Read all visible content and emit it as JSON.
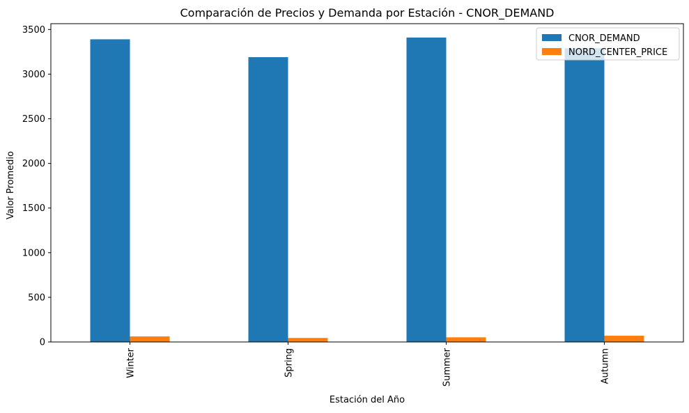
{
  "chart_data": {
    "type": "bar",
    "title": "Comparación de Precios y Demanda por Estación - CNOR_DEMAND",
    "xlabel": "Estación del Año",
    "ylabel": "Valor Promedio",
    "categories": [
      "Winter",
      "Spring",
      "Summer",
      "Autumn"
    ],
    "series": [
      {
        "name": "CNOR_DEMAND",
        "color": "#1f77b4",
        "values": [
          3390,
          3190,
          3410,
          3290
        ]
      },
      {
        "name": "NORD_CENTER_PRICE",
        "color": "#ff7f0e",
        "values": [
          62,
          45,
          52,
          70
        ]
      }
    ],
    "ylim": [
      0,
      3565
    ],
    "yticks": [
      0,
      500,
      1000,
      1500,
      2000,
      2500,
      3000,
      3500
    ],
    "grid": false,
    "legend_position": "top-right"
  }
}
